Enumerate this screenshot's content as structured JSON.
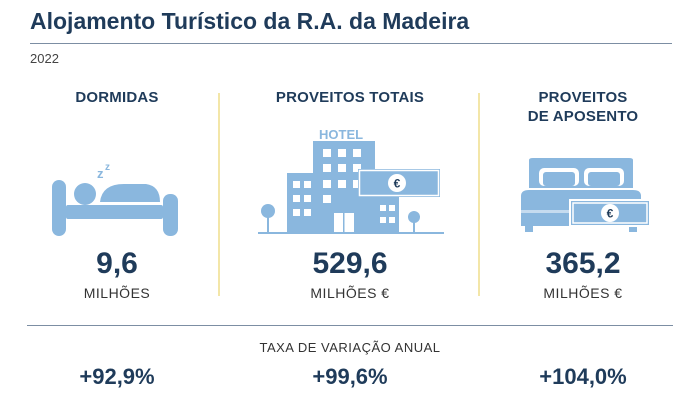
{
  "header": {
    "title": "Alojamento Turístico da R.A. da Madeira",
    "year": "2022"
  },
  "columns": [
    {
      "heading": "DORMIDAS",
      "value": "9,6",
      "unit": "MILHÕES",
      "rate": "+92,9%"
    },
    {
      "heading": "PROVEITOS TOTAIS",
      "value": "529,6",
      "unit": "MILHÕES €",
      "rate": "+99,6%"
    },
    {
      "heading": "PROVEITOS\nDE APOSENTO",
      "value": "365,2",
      "unit": "MILHÕES €",
      "rate": "+104,0%"
    }
  ],
  "icons": {
    "sleep_letters": "z z",
    "hotel_sign": "HOTEL",
    "euro_symbol": "€"
  },
  "rate_label": "TAXA DE VARIAÇÃO ANUAL",
  "colors": {
    "navy": "#1f3b5a",
    "icon_blue": "#8ab7de",
    "separator": "#f3e6a8"
  }
}
